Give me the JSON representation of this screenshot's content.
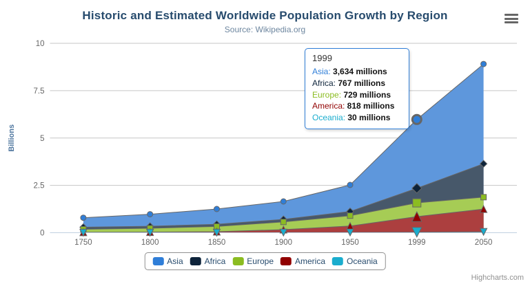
{
  "header": {
    "title": "Historic and Estimated Worldwide Population Growth by Region",
    "subtitle": "Source: Wikipedia.org"
  },
  "credits": {
    "label": "Highcharts.com"
  },
  "colors": {
    "title": "#274b6d",
    "subtitle": "#6d869f",
    "axis_label": "#666666",
    "axis_title": "#4d759e",
    "grid": "#c6c6c6",
    "axis_line": "#c0d0e0",
    "series_outline": "#666666",
    "legend_text": "#274b6d",
    "legend_border": "#909090",
    "credits_text": "#909090",
    "tooltip_border": "#2f7ed8",
    "menu_icon": "#666666"
  },
  "chart_data": {
    "type": "area",
    "stacking": "normal",
    "title": "Historic and Estimated Worldwide Population Growth by Region",
    "subtitle": "Source: Wikipedia.org",
    "xlabel": "",
    "ylabel": "Billions",
    "unit": "millions",
    "categories": [
      "1750",
      "1800",
      "1850",
      "1900",
      "1950",
      "1999",
      "2050"
    ],
    "series": [
      {
        "name": "Asia",
        "color": "#2f7ed8",
        "fill": "#5e97dc",
        "marker": "circle",
        "values": [
          502,
          635,
          809,
          947,
          1402,
          3634,
          5268
        ]
      },
      {
        "name": "Africa",
        "color": "#0d233a",
        "fill": "#47586a",
        "marker": "diamond",
        "values": [
          106,
          107,
          111,
          133,
          221,
          767,
          1766
        ]
      },
      {
        "name": "Europe",
        "color": "#8bbc21",
        "fill": "#a6cc55",
        "marker": "square",
        "values": [
          163,
          203,
          276,
          408,
          547,
          729,
          628
        ]
      },
      {
        "name": "America",
        "color": "#910000",
        "fill": "#ac3f3f",
        "marker": "triangle",
        "values": [
          18,
          31,
          54,
          156,
          339,
          818,
          1201
        ]
      },
      {
        "name": "Oceania",
        "color": "#1aadce",
        "fill": "#54c2da",
        "marker": "triangle-down",
        "values": [
          2,
          2,
          2,
          6,
          13,
          30,
          46
        ]
      }
    ],
    "yticks": [
      0,
      2.5,
      5,
      7.5,
      10
    ],
    "ylim": [
      0,
      10
    ],
    "values_unit_per_axis": 1000,
    "legend_position": "bottom",
    "grid": true,
    "hover_category_index": 5
  },
  "tooltip": {
    "header": "1999",
    "rows": [
      {
        "name": "Asia",
        "color": "#2f7ed8",
        "value": "3,634 millions"
      },
      {
        "name": "Africa",
        "color": "#0d233a",
        "value": "767 millions"
      },
      {
        "name": "Europe",
        "color": "#8bbc21",
        "value": "729 millions"
      },
      {
        "name": "America",
        "color": "#910000",
        "value": "818 millions"
      },
      {
        "name": "Oceania",
        "color": "#1aadce",
        "value": "30 millions"
      }
    ]
  },
  "legend": {
    "items": [
      "Asia",
      "Africa",
      "Europe",
      "America",
      "Oceania"
    ]
  }
}
